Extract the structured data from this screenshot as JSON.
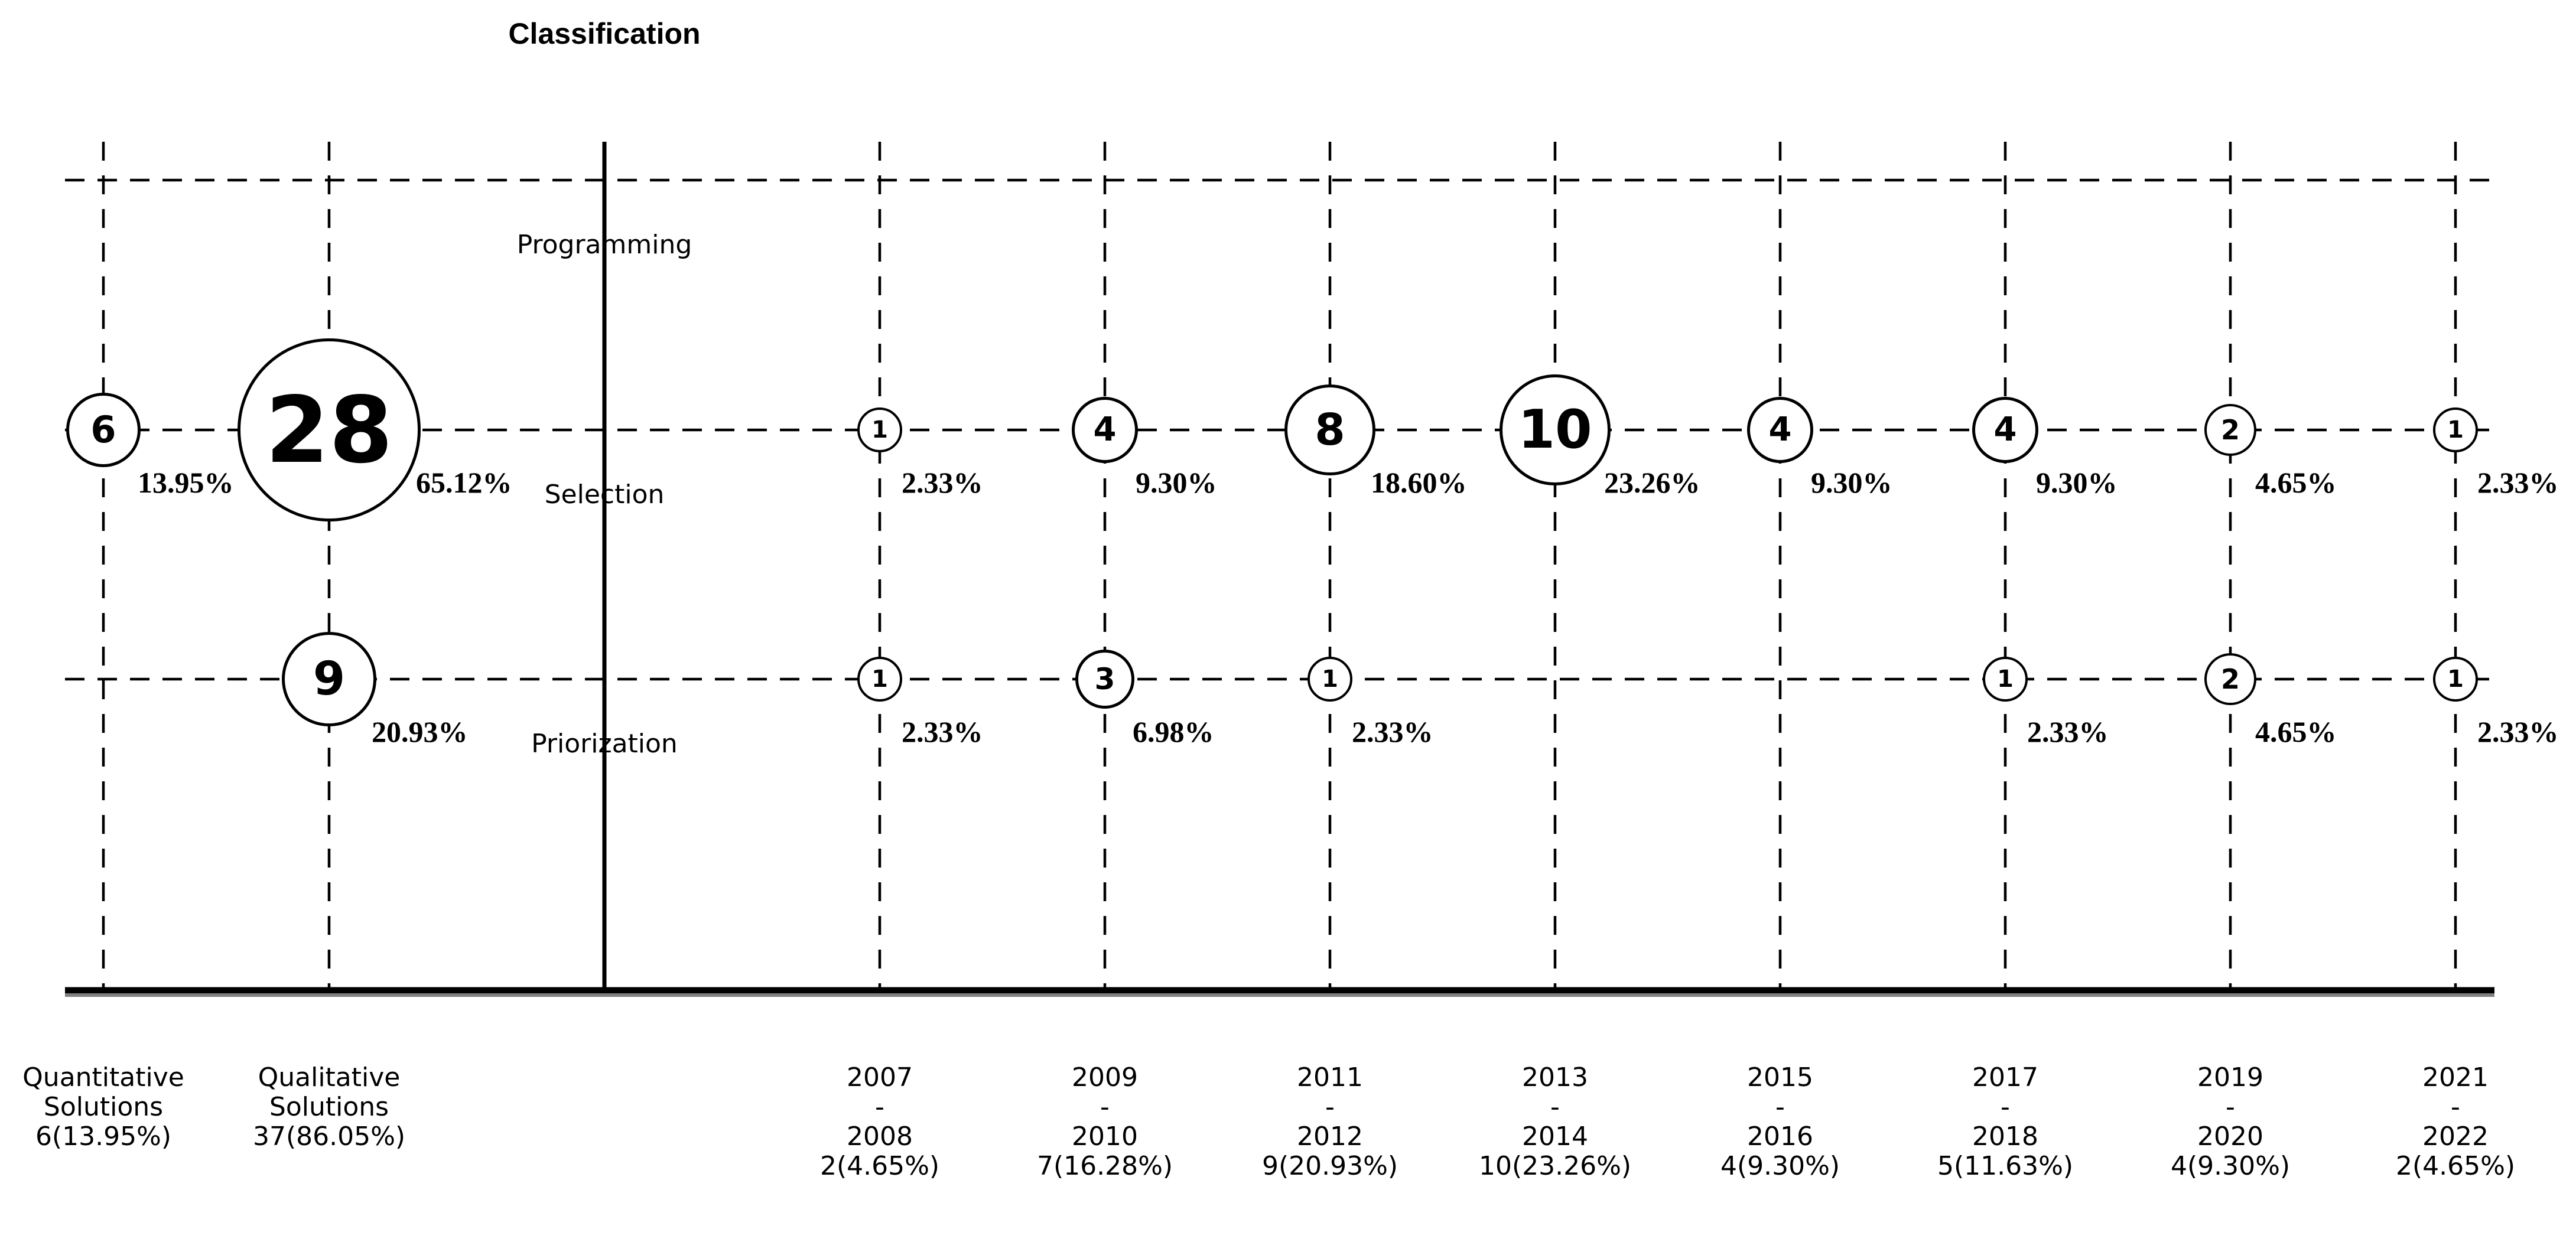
{
  "chart_data": {
    "type": "bubble",
    "title": "Classification",
    "rows": [
      "Programming",
      "Selection",
      "Priorization"
    ],
    "columns": [
      {
        "id": "quantitative-solutions",
        "heading_lines": [
          "Quantitative",
          "Solutions",
          "6(13.95%)"
        ]
      },
      {
        "id": "qualitative-solutions",
        "heading_lines": [
          "Qualitative",
          "Solutions",
          "37(86.05%)"
        ]
      },
      {
        "id": "2007-2008",
        "heading_lines": [
          "2007",
          "-",
          "2008",
          "2(4.65%)"
        ]
      },
      {
        "id": "2009-2010",
        "heading_lines": [
          "2009",
          "-",
          "2010",
          "7(16.28%)"
        ]
      },
      {
        "id": "2011-2012",
        "heading_lines": [
          "2011",
          "-",
          "2012",
          "9(20.93%)"
        ]
      },
      {
        "id": "2013-2014",
        "heading_lines": [
          "2013",
          "-",
          "2014",
          "10(23.26%)"
        ]
      },
      {
        "id": "2015-2016",
        "heading_lines": [
          "2015",
          "-",
          "2016",
          "4(9.30%)"
        ]
      },
      {
        "id": "2017-2018",
        "heading_lines": [
          "2017",
          "-",
          "2018",
          "5(11.63%)"
        ]
      },
      {
        "id": "2019-2020",
        "heading_lines": [
          "2019",
          "-",
          "2020",
          "4(9.30%)"
        ]
      },
      {
        "id": "2021-2022",
        "heading_lines": [
          "2021",
          "-",
          "2022",
          "2(4.65%)"
        ]
      }
    ],
    "bubbles": [
      {
        "row": "Selection",
        "column": "quantitative-solutions",
        "value": 6,
        "percent": "13.95%"
      },
      {
        "row": "Selection",
        "column": "qualitative-solutions",
        "value": 28,
        "percent": "65.12%"
      },
      {
        "row": "Priorization",
        "column": "qualitative-solutions",
        "value": 9,
        "percent": "20.93%"
      },
      {
        "row": "Selection",
        "column": "2007-2008",
        "value": 1,
        "percent": "2.33%"
      },
      {
        "row": "Priorization",
        "column": "2007-2008",
        "value": 1,
        "percent": "2.33%"
      },
      {
        "row": "Selection",
        "column": "2009-2010",
        "value": 4,
        "percent": "9.30%"
      },
      {
        "row": "Priorization",
        "column": "2009-2010",
        "value": 3,
        "percent": "6.98%"
      },
      {
        "row": "Selection",
        "column": "2011-2012",
        "value": 8,
        "percent": "18.60%"
      },
      {
        "row": "Priorization",
        "column": "2011-2012",
        "value": 1,
        "percent": "2.33%"
      },
      {
        "row": "Selection",
        "column": "2013-2014",
        "value": 10,
        "percent": "23.26%"
      },
      {
        "row": "Selection",
        "column": "2015-2016",
        "value": 4,
        "percent": "9.30%"
      },
      {
        "row": "Selection",
        "column": "2017-2018",
        "value": 4,
        "percent": "9.30%"
      },
      {
        "row": "Priorization",
        "column": "2017-2018",
        "value": 1,
        "percent": "2.33%"
      },
      {
        "row": "Selection",
        "column": "2019-2020",
        "value": 2,
        "percent": "4.65%"
      },
      {
        "row": "Priorization",
        "column": "2019-2020",
        "value": 2,
        "percent": "4.65%"
      },
      {
        "row": "Selection",
        "column": "2021-2022",
        "value": 1,
        "percent": "2.33%"
      },
      {
        "row": "Priorization",
        "column": "2021-2022",
        "value": 1,
        "percent": "2.33%"
      }
    ],
    "colors": {
      "ink": "#000000",
      "background": "#ffffff",
      "axis_shadow": "#808080"
    }
  }
}
